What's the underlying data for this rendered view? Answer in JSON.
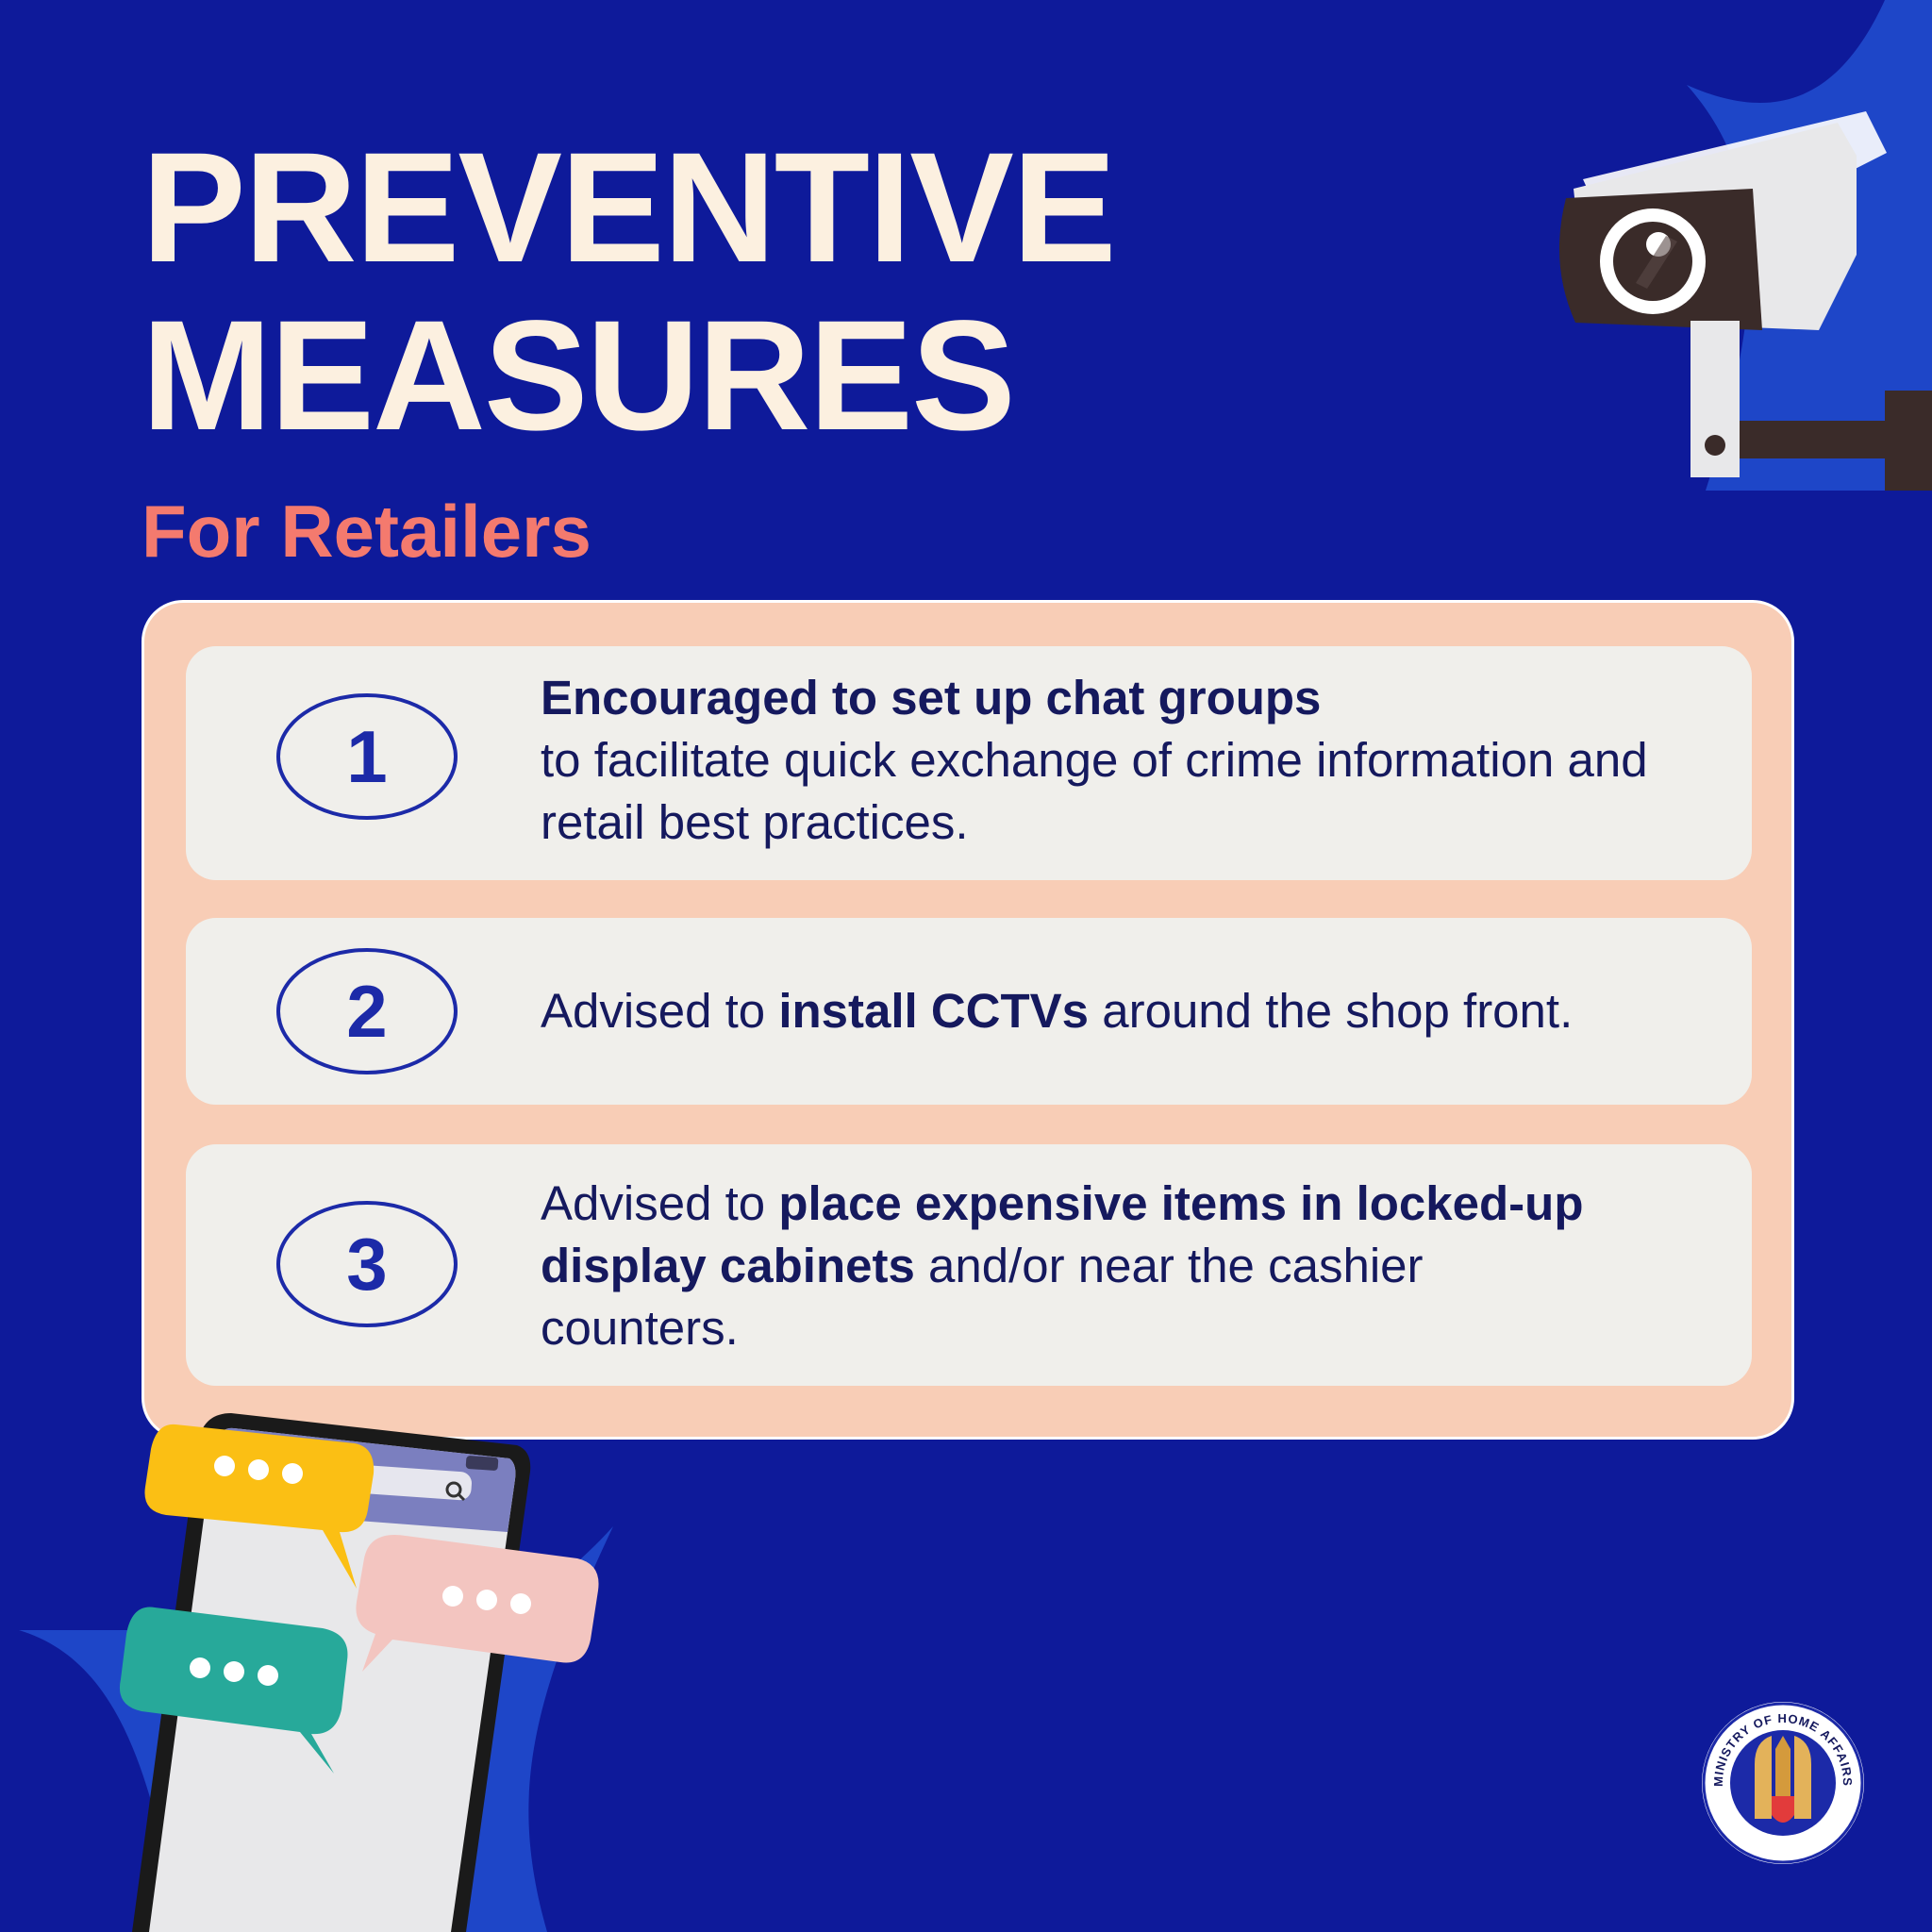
{
  "header": {
    "title_line1": "PREVENTIVE",
    "title_line2": "MEASURES",
    "subtitle": "For Retailers"
  },
  "measures": [
    {
      "number": "1",
      "bold_lead": "Encouraged to set up chat groups",
      "rest": "to facilitate quick exchange of crime information and retail best practices."
    },
    {
      "number": "2",
      "prefix": "Advised to ",
      "bold": "install CCTVs",
      "suffix": " around the shop front."
    },
    {
      "number": "3",
      "prefix": "Advised to ",
      "bold": "place expensive items in locked-up display cabinets",
      "suffix": " and/or near the cashier counters."
    }
  ],
  "logo": {
    "name": "MINISTRY OF HOME AFFAIRS"
  },
  "colors": {
    "background": "#0e1a9a",
    "title": "#fcf0e0",
    "subtitle": "#f47a6e",
    "panel": "#f8cdb6",
    "card": "#f0efeb",
    "text": "#15195e",
    "accent": "#1c2aa8"
  }
}
